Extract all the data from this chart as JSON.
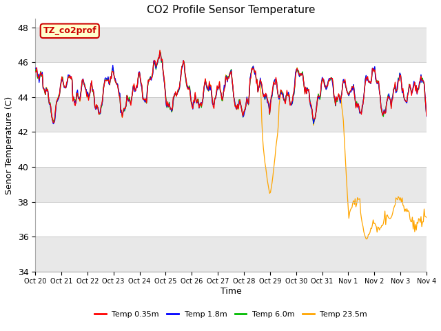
{
  "title": "CO2 Profile Sensor Temperature",
  "ylabel": "Senor Temperature (C)",
  "xlabel": "Time",
  "annotation_text": "TZ_co2prof",
  "ylim": [
    34,
    48.5
  ],
  "yticks": [
    34,
    36,
    38,
    40,
    42,
    44,
    46,
    48
  ],
  "xtick_labels": [
    "Oct 20",
    "Oct 21",
    "Oct 22",
    "Oct 23",
    "Oct 24",
    "Oct 25",
    "Oct 26",
    "Oct 27",
    "Oct 28",
    "Oct 29",
    "Oct 30",
    "Oct 31",
    "Nov 1",
    "Nov 2",
    "Nov 3",
    "Nov 4"
  ],
  "colors": {
    "red": "#FF0000",
    "blue": "#0000FF",
    "green": "#00BB00",
    "orange": "#FFA500",
    "bg_light": "#E8E8E8",
    "bg_white": "#FFFFFF",
    "annotation_bg": "#FFFFCC",
    "annotation_border": "#CC0000"
  },
  "legend": [
    {
      "label": "Temp 0.35m",
      "color": "#FF0000"
    },
    {
      "label": "Temp 1.8m",
      "color": "#0000FF"
    },
    {
      "label": "Temp 6.0m",
      "color": "#00BB00"
    },
    {
      "label": "Temp 23.5m",
      "color": "#FFA500"
    }
  ],
  "n_points": 500,
  "base_temp": 44.2,
  "seed": 12
}
